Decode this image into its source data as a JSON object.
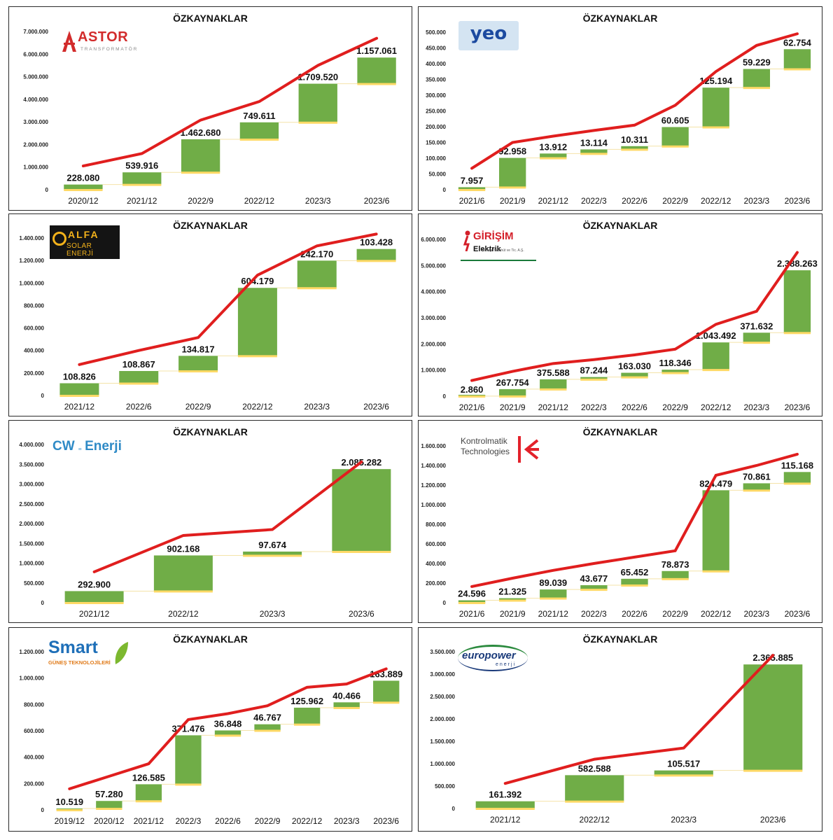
{
  "chart_data": [
    {
      "type": "waterfall",
      "title": "ÖZKAYNAKLAR",
      "logo": {
        "text": "ASTOR",
        "subtext": "TRANSFORMATÖR"
      },
      "categories": [
        "2020/12",
        "2021/12",
        "2022/9",
        "2022/12",
        "2023/3",
        "2023/6"
      ],
      "values": [
        228080,
        539916,
        1462680,
        749611,
        1709520,
        1157061
      ],
      "labels": [
        "228.080",
        "539.916",
        "1.462.680",
        "749.611",
        "1.709.520",
        "1.157.061"
      ],
      "yticks": [
        "0",
        "1.000.000",
        "2.000.000",
        "3.000.000",
        "4.000.000",
        "5.000.000",
        "6.000.000",
        "7.000.000"
      ],
      "ylim": [
        0,
        7000000
      ],
      "trend_line": [
        1050000,
        1600000,
        3080000,
        3900000,
        5500000,
        6700000
      ]
    },
    {
      "type": "waterfall",
      "title": "ÖZKAYNAKLAR",
      "logo": {
        "text": "yeo"
      },
      "categories": [
        "2021/6",
        "2021/9",
        "2021/12",
        "2022/3",
        "2022/6",
        "2022/9",
        "2022/12",
        "2023/3",
        "2023/6"
      ],
      "values": [
        7957,
        92958,
        13912,
        13114,
        10311,
        60605,
        125194,
        59229,
        62754
      ],
      "labels": [
        "7.957",
        "92.958",
        "13.912",
        "13.114",
        "10.311",
        "60.605",
        "125.194",
        "59.229",
        "62.754"
      ],
      "yticks": [
        "0",
        "50.000",
        "100.000",
        "150.000",
        "200.000",
        "250.000",
        "300.000",
        "350.000",
        "400.000",
        "450.000",
        "500.000"
      ],
      "ylim": [
        0,
        500000
      ],
      "trend_line": [
        68000,
        150000,
        170000,
        188000,
        205000,
        268000,
        375000,
        458000,
        495000
      ]
    },
    {
      "type": "waterfall",
      "title": "ÖZKAYNAKLAR",
      "logo": {
        "text": "ALFA",
        "subtext": "SOLAR ENERJİ"
      },
      "categories": [
        "2021/12",
        "2022/6",
        "2022/9",
        "2022/12",
        "2023/3",
        "2023/6"
      ],
      "values": [
        108826,
        108867,
        134817,
        604179,
        242170,
        103428
      ],
      "labels": [
        "108.826",
        "108.867",
        "134.817",
        "604.179",
        "242.170",
        "103.428"
      ],
      "yticks": [
        "0",
        "200.000",
        "400.000",
        "600.000",
        "800.000",
        "1.000.000",
        "1.200.000",
        "1.400.000"
      ],
      "ylim": [
        0,
        1400000
      ],
      "trend_line": [
        275000,
        400000,
        515000,
        1070000,
        1330000,
        1435000
      ]
    },
    {
      "type": "waterfall",
      "title": "ÖZKAYNAKLAR",
      "logo": {
        "text": "GİRİŞİM",
        "subtext": "Elektrik",
        "tagline": "Sanayi Taahhüt ve Tic. A.Ş."
      },
      "categories": [
        "2021/6",
        "2021/9",
        "2021/12",
        "2022/3",
        "2022/6",
        "2022/9",
        "2022/12",
        "2023/3",
        "2023/6"
      ],
      "values": [
        2860,
        267754,
        375588,
        87244,
        163030,
        118346,
        1043492,
        371632,
        2388263
      ],
      "labels": [
        "2.860",
        "267.754",
        "375.588",
        "87.244",
        "163.030",
        "118.346",
        "1.043.492",
        "371.632",
        "2.388.263"
      ],
      "yticks": [
        "0",
        "1.000.000",
        "2.000.000",
        "3.000.000",
        "4.000.000",
        "5.000.000",
        "6.000.000"
      ],
      "ylim": [
        0,
        6000000
      ],
      "trend_line": [
        600000,
        950000,
        1250000,
        1400000,
        1580000,
        1800000,
        2750000,
        3250000,
        5500000
      ]
    },
    {
      "type": "waterfall",
      "title": "ÖZKAYNAKLAR",
      "logo": {
        "text": "CW",
        "subtext": "Enerji"
      },
      "categories": [
        "2021/12",
        "2022/12",
        "2023/3",
        "2023/6"
      ],
      "values": [
        292900,
        902168,
        97674,
        2085282
      ],
      "labels": [
        "292.900",
        "902.168",
        "97.674",
        "2.085.282"
      ],
      "yticks": [
        "0",
        "500.000",
        "1.000.000",
        "1.500.000",
        "2.000.000",
        "2.500.000",
        "3.000.000",
        "3.500.000",
        "4.000.000"
      ],
      "ylim": [
        0,
        4000000
      ],
      "trend_line": [
        780000,
        1700000,
        1850000,
        3560000
      ]
    },
    {
      "type": "waterfall",
      "title": "ÖZKAYNAKLAR",
      "logo": {
        "text": "Kontrolmatik",
        "subtext": "Technologies"
      },
      "categories": [
        "2021/6",
        "2021/9",
        "2021/12",
        "2022/3",
        "2022/6",
        "2022/9",
        "2022/12",
        "2023/3",
        "2023/6"
      ],
      "values": [
        24596,
        21325,
        89039,
        43677,
        65452,
        78873,
        824479,
        70861,
        115168
      ],
      "labels": [
        "24.596",
        "21.325",
        "89.039",
        "43.677",
        "65.452",
        "78.873",
        "824.479",
        "70.861",
        "115.168"
      ],
      "yticks": [
        "0",
        "200.000",
        "400.000",
        "600.000",
        "800.000",
        "1.000.000",
        "1.200.000",
        "1.400.000",
        "1.600.000"
      ],
      "ylim": [
        0,
        1600000
      ],
      "trend_line": [
        165000,
        250000,
        330000,
        400000,
        465000,
        530000,
        1300000,
        1400000,
        1515000
      ]
    },
    {
      "type": "waterfall",
      "title": "ÖZKAYNAKLAR",
      "logo": {
        "text": "Smart",
        "subtext": "GÜNEŞ TEKNOLOJİLERİ"
      },
      "categories": [
        "2019/12",
        "2020/12",
        "2021/12",
        "2022/3",
        "2022/6",
        "2022/9",
        "2022/12",
        "2023/3",
        "2023/6"
      ],
      "values": [
        10519,
        57280,
        126585,
        371476,
        36848,
        46767,
        125962,
        40466,
        163889
      ],
      "labels": [
        "10.519",
        "57.280",
        "126.585",
        "371.476",
        "36.848",
        "46.767",
        "125.962",
        "40.466",
        "163.889"
      ],
      "yticks": [
        "0",
        "200.000",
        "400.000",
        "600.000",
        "800.000",
        "1.000.000",
        "1.200.000"
      ],
      "ylim": [
        0,
        1200000
      ],
      "trend_line": [
        160000,
        255000,
        350000,
        685000,
        730000,
        790000,
        930000,
        955000,
        1070000
      ]
    },
    {
      "type": "waterfall",
      "title": "ÖZKAYNAKLAR",
      "logo": {
        "text": "europower",
        "subtext": "enerji"
      },
      "categories": [
        "2021/12",
        "2022/12",
        "2023/3",
        "2023/6"
      ],
      "values": [
        161392,
        582588,
        105517,
        2365885
      ],
      "labels": [
        "161.392",
        "582.588",
        "105.517",
        "2.365.885"
      ],
      "yticks": [
        "0",
        "500.000",
        "1.000.000",
        "1.500.000",
        "2.000.000",
        "2.500.000",
        "3.000.000",
        "3.500.000"
      ],
      "ylim": [
        0,
        3500000
      ],
      "trend_line": [
        560000,
        1100000,
        1350000,
        3420000
      ]
    }
  ]
}
